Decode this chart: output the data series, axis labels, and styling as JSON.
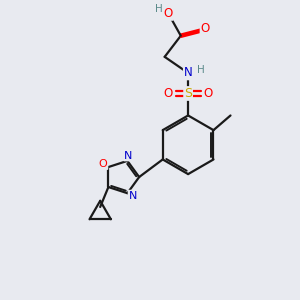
{
  "background_color": "#e8eaf0",
  "bond_color": "#1a1a1a",
  "atom_colors": {
    "O": "#ff0000",
    "N": "#0000cc",
    "S": "#ccaa00",
    "H_gray": "#5a8a8a",
    "C": "#1a1a1a"
  },
  "figsize": [
    3.0,
    3.0
  ],
  "dpi": 100
}
